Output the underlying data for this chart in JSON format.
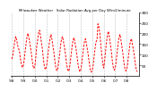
{
  "title": "Milwaukee Weather   Solar Radiation Avg per Day W/m2/minute",
  "line_color": "#ff0000",
  "bg_color": "#ffffff",
  "grid_color": "#888888",
  "ylim": [
    0,
    300
  ],
  "yticks": [
    50,
    100,
    150,
    200,
    250,
    300
  ],
  "x_years": [
    "'98",
    "'99",
    "'00",
    "'01",
    "'02",
    "'03",
    "'04",
    "'05",
    "'06",
    "'07",
    "'08"
  ],
  "monthly_data": [
    80,
    95,
    130,
    160,
    185,
    170,
    145,
    130,
    115,
    80,
    55,
    40,
    50,
    75,
    120,
    155,
    190,
    200,
    175,
    150,
    120,
    85,
    50,
    35,
    45,
    85,
    140,
    170,
    205,
    215,
    185,
    155,
    125,
    80,
    45,
    30,
    40,
    70,
    110,
    150,
    180,
    195,
    170,
    140,
    110,
    70,
    40,
    25,
    35,
    65,
    105,
    145,
    175,
    185,
    160,
    135,
    105,
    65,
    38,
    22,
    30,
    60,
    100,
    140,
    170,
    180,
    155,
    130,
    100,
    60,
    35,
    20,
    28,
    55,
    95,
    135,
    165,
    175,
    150,
    125,
    95,
    58,
    32,
    18,
    25,
    50,
    90,
    130,
    160,
    170,
    245,
    230,
    200,
    145,
    100,
    60,
    38,
    70,
    120,
    160,
    195,
    210,
    180,
    150,
    115,
    72,
    42,
    28,
    35,
    65,
    110,
    150,
    180,
    195,
    170,
    140,
    108,
    68,
    38,
    24,
    30,
    55,
    95,
    135,
    165,
    175,
    150,
    125,
    95,
    60,
    32,
    20
  ],
  "line_width": 0.7,
  "dash_pattern": [
    2.5,
    1.5
  ]
}
